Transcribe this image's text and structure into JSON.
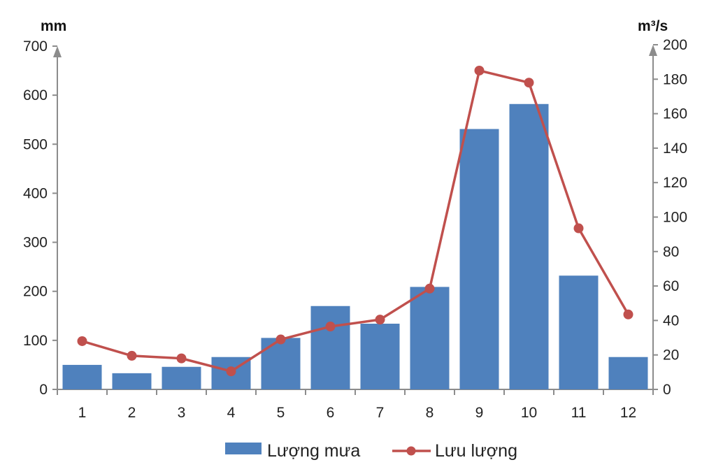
{
  "chart_data": {
    "type": "bar",
    "categories": [
      "1",
      "2",
      "3",
      "4",
      "5",
      "6",
      "7",
      "8",
      "9",
      "10",
      "11",
      "12"
    ],
    "series": [
      {
        "name": "Lượng mưa",
        "type": "bar",
        "axis": "left",
        "color": "#4f81bd",
        "values": [
          50,
          33,
          46,
          66,
          105,
          170,
          134,
          209,
          531,
          582,
          232,
          66
        ]
      },
      {
        "name": "Lưu lượng",
        "type": "line",
        "axis": "right",
        "color": "#c0504d",
        "values": [
          28,
          19.5,
          18,
          10.5,
          29,
          36.5,
          40.5,
          58.5,
          185,
          178,
          93.5,
          43.5
        ]
      }
    ],
    "ylabel_left": "mm",
    "ylabel_right": "m³/s",
    "ylim_left": [
      0,
      700
    ],
    "ylim_right": [
      0,
      200
    ],
    "yticks_left": [
      0,
      100,
      200,
      300,
      400,
      500,
      600,
      700
    ],
    "yticks_right": [
      0,
      20,
      40,
      60,
      80,
      100,
      120,
      140,
      160,
      180,
      200
    ],
    "grid": false,
    "legend_position": "bottom"
  }
}
